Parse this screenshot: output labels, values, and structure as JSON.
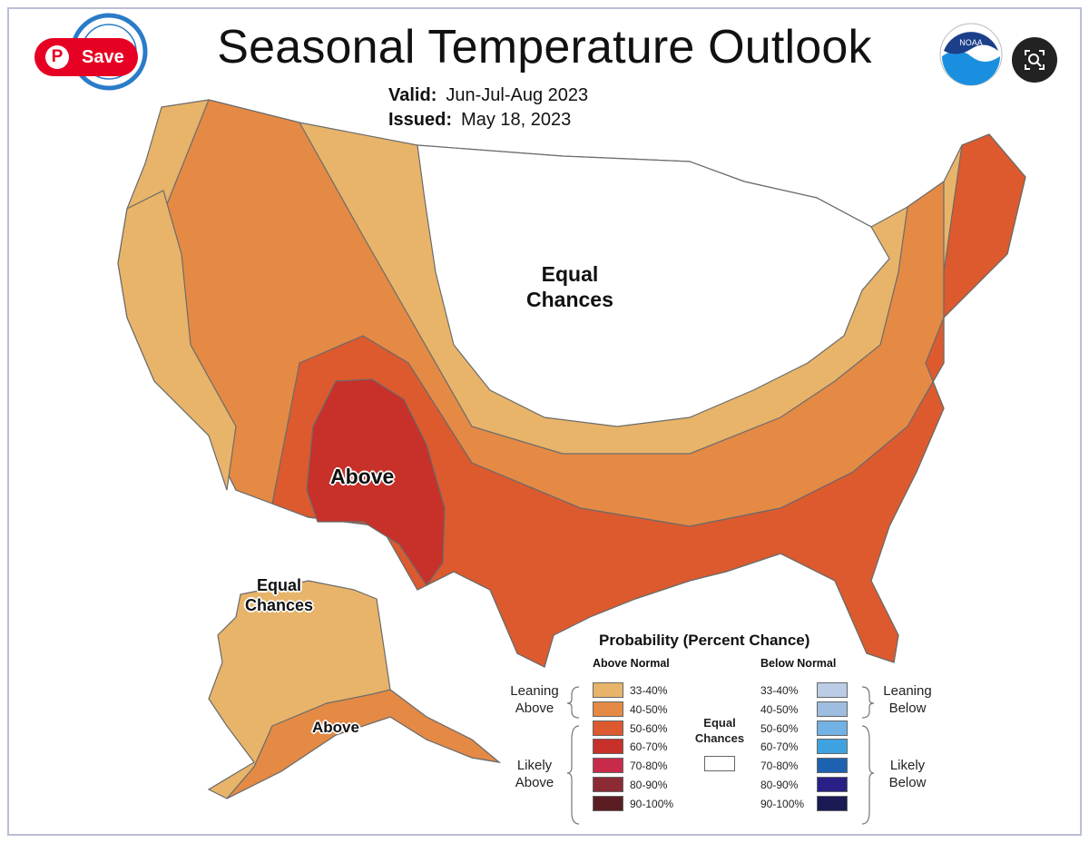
{
  "header": {
    "title": "Seasonal Temperature Outlook",
    "valid_label": "Valid:",
    "valid_value": "Jun-Jul-Aug 2023",
    "issued_label": "Issued:",
    "issued_value": "May 18, 2023"
  },
  "overlay": {
    "save_label": "Save",
    "save_icon": "pinterest-icon",
    "lens_icon": "visual-search-icon"
  },
  "logos": {
    "noaa_text": "NOAA",
    "left_seal": "nws-seal"
  },
  "map_labels": {
    "equal_chances_conus_1": "Equal",
    "equal_chances_conus_2": "Chances",
    "above_conus": "Above",
    "equal_chances_ak_1": "Equal",
    "equal_chances_ak_2": "Chances",
    "above_ak": "Above"
  },
  "legend": {
    "title": "Probability (Percent Chance)",
    "above_header": "Above Normal",
    "below_header": "Below Normal",
    "equal_label_1": "Equal",
    "equal_label_2": "Chances",
    "leaning_above_1": "Leaning",
    "leaning_above_2": "Above",
    "likely_above_1": "Likely",
    "likely_above_2": "Above",
    "leaning_below_1": "Leaning",
    "leaning_below_2": "Below",
    "likely_below_1": "Likely",
    "likely_below_2": "Below",
    "above_bins": [
      {
        "label": "33-40%",
        "color": "#e8b46a"
      },
      {
        "label": "40-50%",
        "color": "#e48a45"
      },
      {
        "label": "50-60%",
        "color": "#dc5a2e"
      },
      {
        "label": "60-70%",
        "color": "#c8302a"
      },
      {
        "label": "70-80%",
        "color": "#c82b4a"
      },
      {
        "label": "80-90%",
        "color": "#8c2a35"
      },
      {
        "label": "90-100%",
        "color": "#5a1e22"
      }
    ],
    "below_bins": [
      {
        "label": "33-40%",
        "color": "#bccbe6"
      },
      {
        "label": "40-50%",
        "color": "#9fbde0"
      },
      {
        "label": "50-60%",
        "color": "#72b2e4"
      },
      {
        "label": "60-70%",
        "color": "#3fa2e0"
      },
      {
        "label": "70-80%",
        "color": "#1d62b0"
      },
      {
        "label": "80-90%",
        "color": "#2a1f86"
      },
      {
        "label": "90-100%",
        "color": "#1a1a55"
      }
    ],
    "equal_color": "#ffffff"
  }
}
